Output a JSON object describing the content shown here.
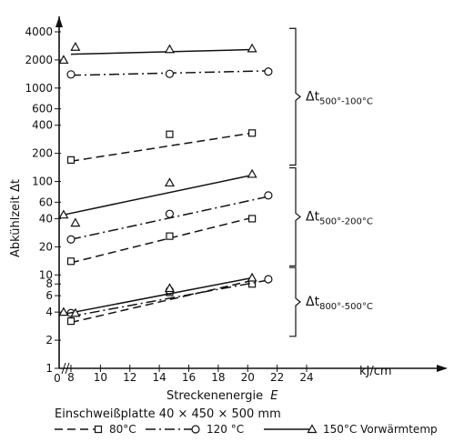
{
  "chart_data": {
    "type": "line",
    "y_scale": "log",
    "ylabel": "Abkühlzeit Δt",
    "xlabel": "Streckenenergie",
    "xlabel_var": "E",
    "xunit": "kJ/cm",
    "y_ticks": [
      "1",
      "2",
      "4",
      "6",
      "8",
      "10",
      "20",
      "40",
      "60",
      "100",
      "200",
      "400",
      "600",
      "1000",
      "2000",
      "4000"
    ],
    "x_ticks": [
      "8",
      "10",
      "12",
      "14",
      "16",
      "18",
      "20",
      "22",
      "24"
    ],
    "x_tick_values": [
      8,
      10,
      12,
      14,
      16,
      18,
      20,
      22,
      24
    ],
    "y_tick_values": [
      1,
      2,
      4,
      6,
      8,
      10,
      20,
      40,
      60,
      100,
      200,
      400,
      600,
      1000,
      2000,
      4000
    ],
    "x_break_label": "0",
    "caption_line1": "Einschweißplatte  40 × 450 × 500 mm",
    "legend": [
      {
        "label": "80°C",
        "style": "dashed",
        "marker": "square"
      },
      {
        "label": "120 °C",
        "style": "dashdot",
        "marker": "circle"
      },
      {
        "label": "150°C Vorwärmtemp",
        "style": "solid",
        "marker": "triangle"
      }
    ],
    "groups": [
      {
        "label": "Δt",
        "sub": "500°-100°C"
      },
      {
        "label": "Δt",
        "sub": "500°-200°C"
      },
      {
        "label": "Δt",
        "sub": "800°-500°C"
      }
    ],
    "series": [
      {
        "group": 0,
        "temp": "80°C",
        "style": "dashed",
        "marker": "square",
        "points": [
          [
            8,
            170
          ],
          [
            14.7,
            320
          ],
          [
            20.3,
            330
          ]
        ],
        "fit": [
          [
            8,
            165
          ],
          [
            20.3,
            330
          ]
        ]
      },
      {
        "group": 0,
        "temp": "120 °C",
        "style": "dashdot",
        "marker": "circle",
        "points": [
          [
            8,
            1400
          ],
          [
            14.7,
            1420
          ],
          [
            21.4,
            1500
          ]
        ],
        "fit": [
          [
            8,
            1370
          ],
          [
            21.4,
            1530
          ]
        ]
      },
      {
        "group": 0,
        "temp": "150°C",
        "style": "solid",
        "marker": "triangle",
        "points": [
          [
            7.5,
            2000
          ],
          [
            8.3,
            2750
          ],
          [
            14.7,
            2600
          ],
          [
            20.3,
            2650
          ]
        ],
        "fit": [
          [
            8,
            2300
          ],
          [
            20.3,
            2580
          ]
        ]
      },
      {
        "group": 1,
        "temp": "80°C",
        "style": "dashed",
        "marker": "square",
        "points": [
          [
            8,
            14
          ],
          [
            14.7,
            26
          ],
          [
            20.3,
            40
          ]
        ],
        "fit": [
          [
            8,
            13.5
          ],
          [
            20.3,
            41
          ]
        ]
      },
      {
        "group": 1,
        "temp": "120 °C",
        "style": "dashdot",
        "marker": "circle",
        "points": [
          [
            8,
            24
          ],
          [
            14.7,
            45
          ],
          [
            21.4,
            71
          ]
        ],
        "fit": [
          [
            8,
            24
          ],
          [
            21.4,
            69
          ]
        ]
      },
      {
        "group": 1,
        "temp": "150°C",
        "style": "solid",
        "marker": "triangle",
        "points": [
          [
            7.5,
            44
          ],
          [
            8.3,
            36
          ],
          [
            14.7,
            97
          ],
          [
            20.3,
            120
          ]
        ],
        "fit": [
          [
            7.5,
            44
          ],
          [
            20.3,
            117
          ]
        ]
      },
      {
        "group": 2,
        "temp": "80°C",
        "style": "dashed",
        "marker": "square",
        "points": [
          [
            8,
            3.2
          ],
          [
            14.7,
            6.5
          ],
          [
            20.3,
            8
          ]
        ],
        "fit": [
          [
            8,
            3.1
          ],
          [
            20.3,
            8.7
          ]
        ]
      },
      {
        "group": 2,
        "temp": "120 °C",
        "style": "dashdot",
        "marker": "circle",
        "points": [
          [
            8,
            3.9
          ],
          [
            14.7,
            6.8
          ],
          [
            21.4,
            9
          ]
        ],
        "fit": [
          [
            8,
            3.6
          ],
          [
            21.4,
            8.8
          ]
        ]
      },
      {
        "group": 2,
        "temp": "150°C",
        "style": "solid",
        "marker": "triangle",
        "points": [
          [
            7.5,
            4.0
          ],
          [
            8.3,
            3.9
          ],
          [
            14.7,
            7.2
          ],
          [
            20.3,
            9.3
          ]
        ],
        "fit": [
          [
            7.5,
            3.8
          ],
          [
            20.3,
            9.3
          ]
        ]
      }
    ]
  }
}
